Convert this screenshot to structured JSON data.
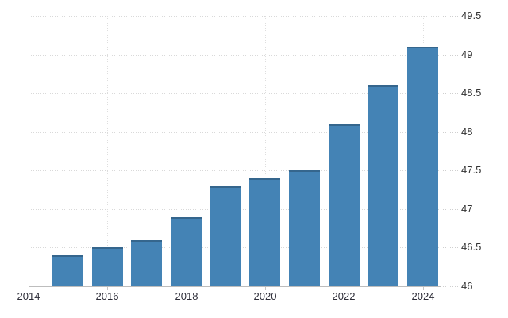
{
  "chart_data": {
    "type": "bar",
    "title": "",
    "xlabel": "",
    "ylabel": "",
    "categories": [
      "2015",
      "2016",
      "2017",
      "2018",
      "2019",
      "2020",
      "2021",
      "2022",
      "2023",
      "2024"
    ],
    "values": [
      46.4,
      46.5,
      46.6,
      46.9,
      47.3,
      47.4,
      47.5,
      48.1,
      48.6,
      49.1
    ],
    "x_axis": {
      "tick_labels": [
        "2014",
        "2016",
        "2018",
        "2020",
        "2022",
        "2024"
      ],
      "tick_values": [
        2014,
        2016,
        2018,
        2020,
        2022,
        2024
      ],
      "range": [
        2014,
        2024.45
      ]
    },
    "y_axis": {
      "tick_labels": [
        "46",
        "46.5",
        "47",
        "47.5",
        "48",
        "48.5",
        "49",
        "49.5"
      ],
      "tick_values": [
        46,
        46.5,
        47,
        47.5,
        48,
        48.5,
        49,
        49.5
      ],
      "range": [
        46,
        49.5
      ],
      "position": "right"
    },
    "grid": true,
    "legend": false,
    "colors": {
      "bar": "#4483b5",
      "gridline": "#d9d9d9",
      "axis": "#c6c6c6",
      "label_text": "#333333",
      "background": "#ffffff"
    }
  }
}
